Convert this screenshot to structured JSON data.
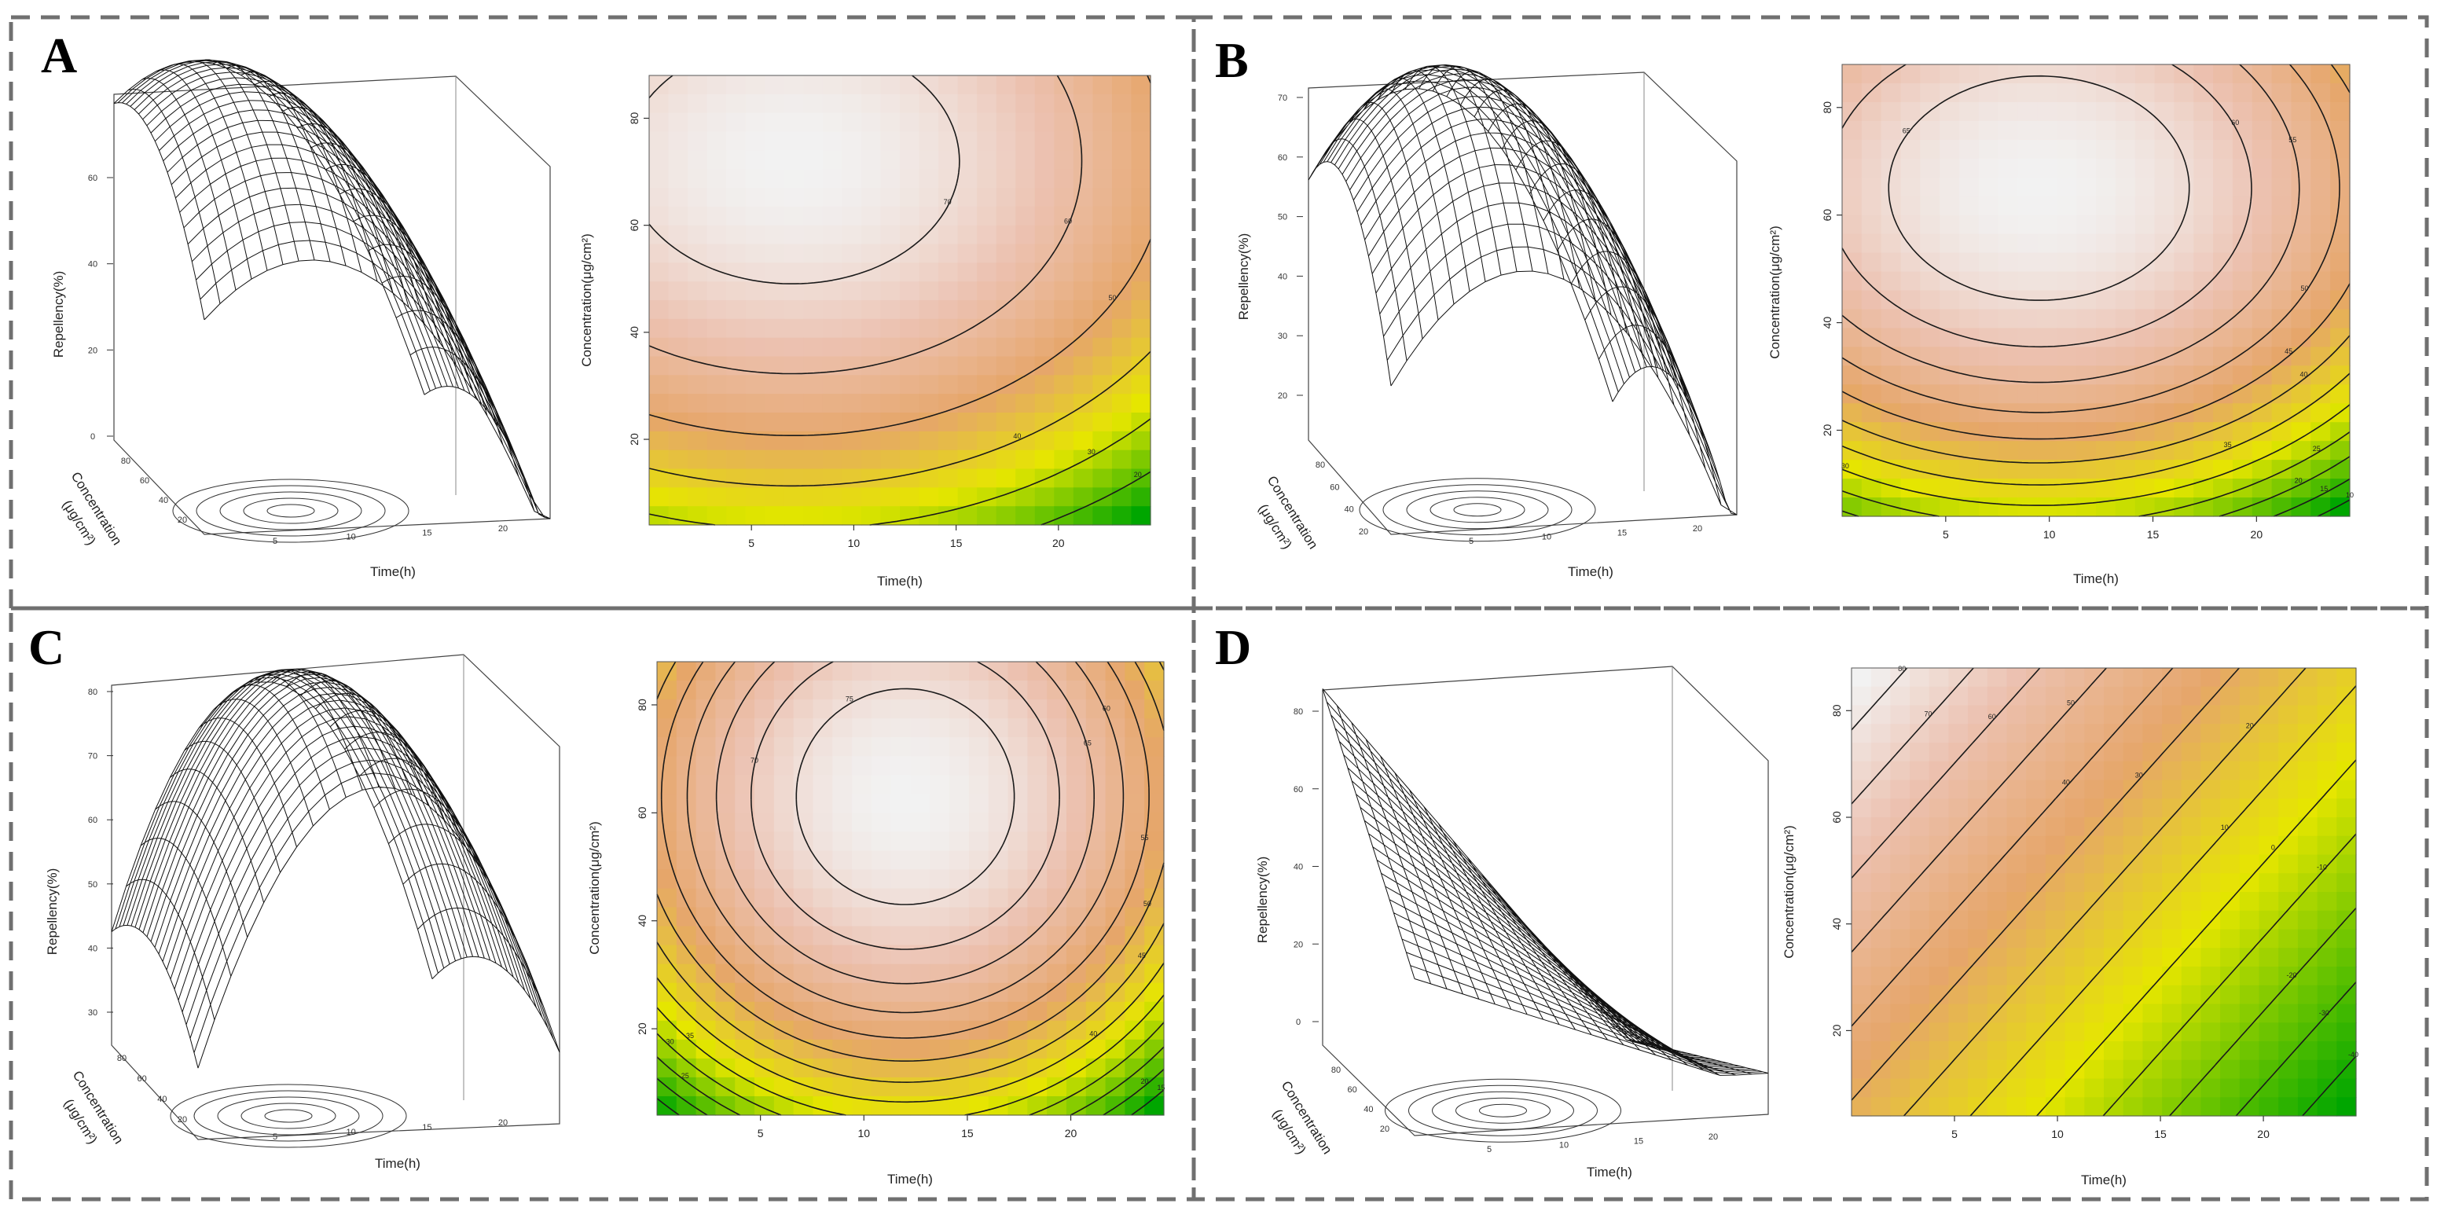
{
  "chart_data": [
    {
      "type": "surface_and_contour",
      "panel_label": "A",
      "xlabel": "Time(h)",
      "ylabel": "Concentration(μg/cm²)",
      "zlabel": "Repellency(%)",
      "zlabel_3d": "Repellency(%)",
      "conc_label_3d_line1": "Concentration",
      "conc_label_3d_line2": "(μg/cm²)",
      "contour_x_ticks": [
        "5",
        "10",
        "15",
        "20"
      ],
      "contour_y_ticks": [
        "20",
        "40",
        "60",
        "80"
      ],
      "surface_z_ticks": [
        "0",
        "20",
        "40",
        "60"
      ],
      "surface_time_ticks": [
        "5",
        "10",
        "15",
        "20"
      ],
      "surface_conc_ticks": [
        "20",
        "40",
        "60",
        "80"
      ],
      "contour_levels": [
        "30",
        "60",
        "70",
        "20",
        "10"
      ],
      "model": {
        "x0": 7,
        "y0": 72,
        "peak": 75,
        "ax": 0.075,
        "ay": 0.0095
      },
      "xlim": [
        0,
        24.5
      ],
      "ylim": [
        4,
        88
      ]
    },
    {
      "type": "surface_and_contour",
      "panel_label": "B",
      "xlabel": "Time(h)",
      "ylabel": "Concentration(μg/cm²)",
      "zlabel": "Repellency(%)",
      "zlabel_3d": "Repellency(%)",
      "conc_label_3d_line1": "Concentration",
      "conc_label_3d_line2": "(μg/cm²)",
      "contour_x_ticks": [
        "5",
        "10",
        "15",
        "20"
      ],
      "contour_y_ticks": [
        "20",
        "40",
        "60",
        "80"
      ],
      "surface_z_ticks": [
        "20",
        "30",
        "40",
        "50",
        "60",
        "70"
      ],
      "surface_time_ticks": [
        "5",
        "10",
        "15",
        "20"
      ],
      "surface_conc_ticks": [
        "20",
        "40",
        "60",
        "80"
      ],
      "contour_levels": [
        "65",
        "60",
        "55",
        "50",
        "45",
        "40",
        "35",
        "30",
        "25",
        "20"
      ],
      "model": {
        "x0": 9.5,
        "y0": 65,
        "peak": 70,
        "ax": 0.095,
        "ay": 0.0115
      },
      "xlim": [
        0,
        24.5
      ],
      "ylim": [
        4,
        88
      ]
    },
    {
      "type": "surface_and_contour",
      "panel_label": "C",
      "xlabel": "Time(h)",
      "ylabel": "Concentration(μg/cm²)",
      "zlabel": "Repellency(%)",
      "zlabel_3d": "Repellency(%)",
      "conc_label_3d_line1": "Concentration",
      "conc_label_3d_line2": "(μg/cm²)",
      "contour_x_ticks": [
        "5",
        "10",
        "15",
        "20"
      ],
      "contour_y_ticks": [
        "20",
        "40",
        "60",
        "80"
      ],
      "surface_z_ticks": [
        "30",
        "40",
        "50",
        "60",
        "70",
        "80"
      ],
      "surface_time_ticks": [
        "5",
        "10",
        "15",
        "20"
      ],
      "surface_conc_ticks": [
        "20",
        "40",
        "60",
        "80"
      ],
      "contour_levels": [
        "80",
        "75",
        "70",
        "65",
        "60",
        "55",
        "50",
        "45",
        "40",
        "35"
      ],
      "model": {
        "x0": 12,
        "y0": 63,
        "peak": 80,
        "ax": 0.18,
        "ay": 0.0125
      },
      "xlim": [
        0,
        24.5
      ],
      "ylim": [
        4,
        88
      ]
    },
    {
      "type": "surface_and_contour",
      "panel_label": "D",
      "xlabel": "Time(h)",
      "ylabel": "Concentration(μg/cm²)",
      "zlabel": "Repellency(%)",
      "zlabel_3d": "Repellency(%)",
      "conc_label_3d_line1": "Concentration",
      "conc_label_3d_line2": "(μg/cm²)",
      "contour_x_ticks": [
        "5",
        "10",
        "15",
        "20"
      ],
      "contour_y_ticks": [
        "20",
        "40",
        "60",
        "80"
      ],
      "surface_z_ticks": [
        "0",
        "20",
        "40",
        "60",
        "80"
      ],
      "surface_time_ticks": [
        "5",
        "10",
        "15",
        "20"
      ],
      "surface_conc_ticks": [
        "20",
        "40",
        "60",
        "80"
      ],
      "contour_levels": [
        "80",
        "70",
        "60",
        "50",
        "40",
        "30",
        "20",
        "10",
        "0"
      ],
      "model": {
        "type": "linear",
        "c": 25,
        "bx": -3.1,
        "by": 0.72
      },
      "xlim": [
        0,
        24.5
      ],
      "ylim": [
        4,
        88
      ]
    }
  ],
  "colors": {
    "frame_dash": "#707070",
    "heat_high": "#f2f2f2",
    "heat_mid1": "#ecc1b0",
    "heat_mid2": "#e6a66a",
    "heat_mid3": "#e6e600",
    "heat_low": "#00a600",
    "contour": "#1a1a1a"
  }
}
